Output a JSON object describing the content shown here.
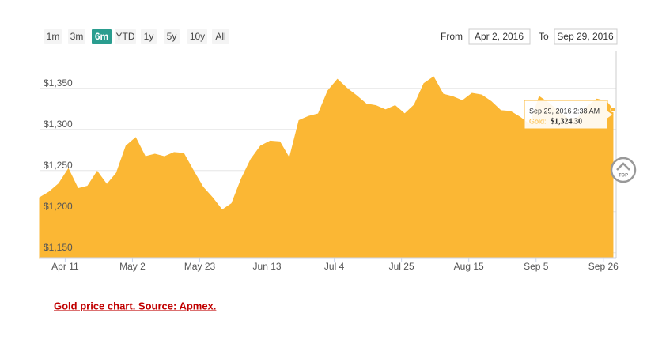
{
  "range_selector": {
    "buttons": [
      "1m",
      "3m",
      "6m",
      "YTD",
      "1y",
      "5y",
      "10y",
      "All"
    ],
    "selected": 2,
    "from_label": "From",
    "from_value": "Apr 2, 2016",
    "to_label": "To",
    "to_value": "Sep 29, 2016"
  },
  "top_button": "TOP",
  "caption": "Gold price chart. Source: Apmex.",
  "chart_data": {
    "type": "area",
    "x": [
      "2016-04-03",
      "2016-04-06",
      "2016-04-09",
      "2016-04-12",
      "2016-04-15",
      "2016-04-18",
      "2016-04-21",
      "2016-04-24",
      "2016-04-27",
      "2016-04-30",
      "2016-05-03",
      "2016-05-06",
      "2016-05-09",
      "2016-05-12",
      "2016-05-15",
      "2016-05-18",
      "2016-05-21",
      "2016-05-24",
      "2016-05-27",
      "2016-05-30",
      "2016-06-02",
      "2016-06-05",
      "2016-06-08",
      "2016-06-11",
      "2016-06-14",
      "2016-06-17",
      "2016-06-20",
      "2016-06-23",
      "2016-06-26",
      "2016-06-29",
      "2016-07-02",
      "2016-07-05",
      "2016-07-08",
      "2016-07-11",
      "2016-07-14",
      "2016-07-17",
      "2016-07-20",
      "2016-07-23",
      "2016-07-26",
      "2016-07-29",
      "2016-08-01",
      "2016-08-04",
      "2016-08-07",
      "2016-08-10",
      "2016-08-13",
      "2016-08-16",
      "2016-08-19",
      "2016-08-22",
      "2016-08-25",
      "2016-08-28",
      "2016-08-31",
      "2016-09-03",
      "2016-09-06",
      "2016-09-09",
      "2016-09-12",
      "2016-09-15",
      "2016-09-18",
      "2016-09-21",
      "2016-09-24",
      "2016-09-27",
      "2016-09-29"
    ],
    "series": [
      {
        "name": "Gold",
        "color": "#fbb734",
        "values": [
          1217,
          1224,
          1234,
          1252,
          1228,
          1231,
          1249,
          1233,
          1247,
          1280,
          1290,
          1267,
          1270,
          1267,
          1272,
          1271,
          1250,
          1230,
          1217,
          1202,
          1210,
          1240,
          1264,
          1280,
          1286,
          1285,
          1265,
          1311,
          1316,
          1319,
          1347,
          1361,
          1350,
          1341,
          1331,
          1329,
          1324,
          1329,
          1319,
          1330,
          1356,
          1364,
          1343,
          1340,
          1335,
          1344,
          1342,
          1334,
          1323,
          1322,
          1315,
          1306,
          1340,
          1332,
          1322,
          1313,
          1314,
          1328,
          1337,
          1334,
          1324.3
        ]
      }
    ],
    "xlim": [
      "2016-04-03",
      "2016-09-30"
    ],
    "xticks": [
      {
        "value": "2016-04-11",
        "label": "Apr 11"
      },
      {
        "value": "2016-05-02",
        "label": "May 2"
      },
      {
        "value": "2016-05-23",
        "label": "May 23"
      },
      {
        "value": "2016-06-13",
        "label": "Jun 13"
      },
      {
        "value": "2016-07-04",
        "label": "Jul 4"
      },
      {
        "value": "2016-07-25",
        "label": "Jul 25"
      },
      {
        "value": "2016-08-15",
        "label": "Aug 15"
      },
      {
        "value": "2016-09-05",
        "label": "Sep 5"
      },
      {
        "value": "2016-09-26",
        "label": "Sep 26"
      }
    ],
    "ylim": [
      1144,
      1395
    ],
    "yticks": [
      {
        "value": 1150,
        "label": "$1,150"
      },
      {
        "value": 1200,
        "label": "$1,200"
      },
      {
        "value": 1250,
        "label": "$1,250"
      },
      {
        "value": 1300,
        "label": "$1,300"
      },
      {
        "value": 1350,
        "label": "$1,350"
      }
    ],
    "grid": true,
    "tooltip": {
      "date": "Sep 29, 2016 2:38 AM",
      "series_label": "Gold:",
      "value_label": "$1,324.30",
      "point": 60
    }
  }
}
